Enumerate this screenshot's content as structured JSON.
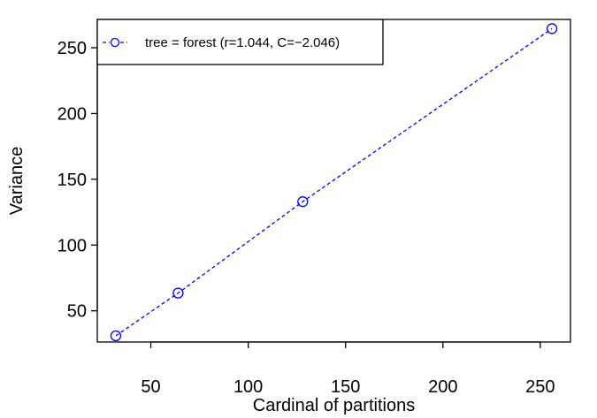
{
  "chart_data": {
    "type": "line",
    "title": "",
    "xlabel": "Cardinal of partitions",
    "ylabel": "Variance",
    "xlim": [
      22.5,
      265.5
    ],
    "ylim": [
      26.3,
      271.5
    ],
    "x_ticks": [
      50,
      100,
      150,
      200,
      250
    ],
    "y_ticks": [
      50,
      100,
      150,
      200,
      250
    ],
    "grid": false,
    "legend_position": "top-left",
    "series": [
      {
        "name": "tree = forest (r=1.044, C=−2.046)",
        "color": "#0000ff",
        "line_style": "dashed",
        "marker": "open-circle",
        "x": [
          32,
          64,
          128,
          256
        ],
        "y": [
          31,
          63.5,
          133,
          264.5
        ]
      }
    ]
  }
}
